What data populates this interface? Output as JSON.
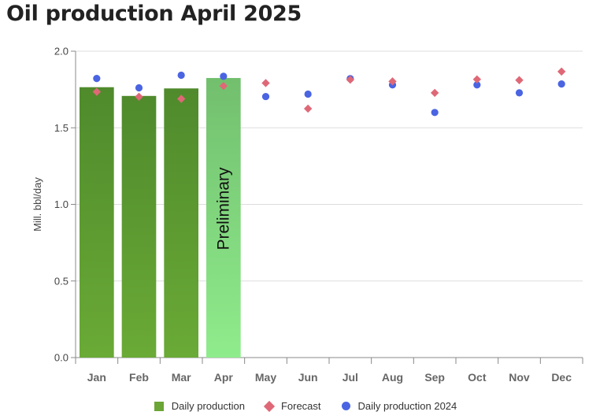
{
  "title": "Oil production April 2025",
  "colors": {
    "bar_top": "#4f8a2c",
    "bar_bottom": "#6aaa36",
    "prelim_top": "#72bf6e",
    "prelim_bottom": "#8fec8c",
    "forecast": "#df6877",
    "daily_2024": "#4a64e2",
    "grid": "#dddddd"
  },
  "chart_data": {
    "type": "bar",
    "ylabel": "Mill. bbl/day",
    "ylim": [
      0,
      2.0
    ],
    "yticks": [
      "0.0",
      "0.5",
      "1.0",
      "1.5",
      "2.0"
    ],
    "grid": true,
    "legend_position": "bottom",
    "categories": [
      "Jan",
      "Feb",
      "Mar",
      "Apr",
      "May",
      "Jun",
      "Jul",
      "Aug",
      "Sep",
      "Oct",
      "Nov",
      "Dec"
    ],
    "series": [
      {
        "name": "Daily production",
        "kind": "bar",
        "values": [
          1.765,
          1.708,
          1.757,
          1.825,
          null,
          null,
          null,
          null,
          null,
          null,
          null,
          null
        ]
      },
      {
        "name": "Forecast",
        "kind": "diamond",
        "values": [
          1.735,
          1.703,
          1.689,
          1.773,
          1.792,
          1.625,
          1.814,
          1.803,
          1.728,
          1.816,
          1.811,
          1.867
        ]
      },
      {
        "name": "Daily production 2024",
        "kind": "dot",
        "values": [
          1.822,
          1.761,
          1.843,
          1.836,
          1.704,
          1.72,
          1.821,
          1.78,
          1.6,
          1.78,
          1.728,
          1.786
        ]
      }
    ],
    "annotations": [
      {
        "category": "Apr",
        "text": "Preliminary"
      }
    ]
  }
}
